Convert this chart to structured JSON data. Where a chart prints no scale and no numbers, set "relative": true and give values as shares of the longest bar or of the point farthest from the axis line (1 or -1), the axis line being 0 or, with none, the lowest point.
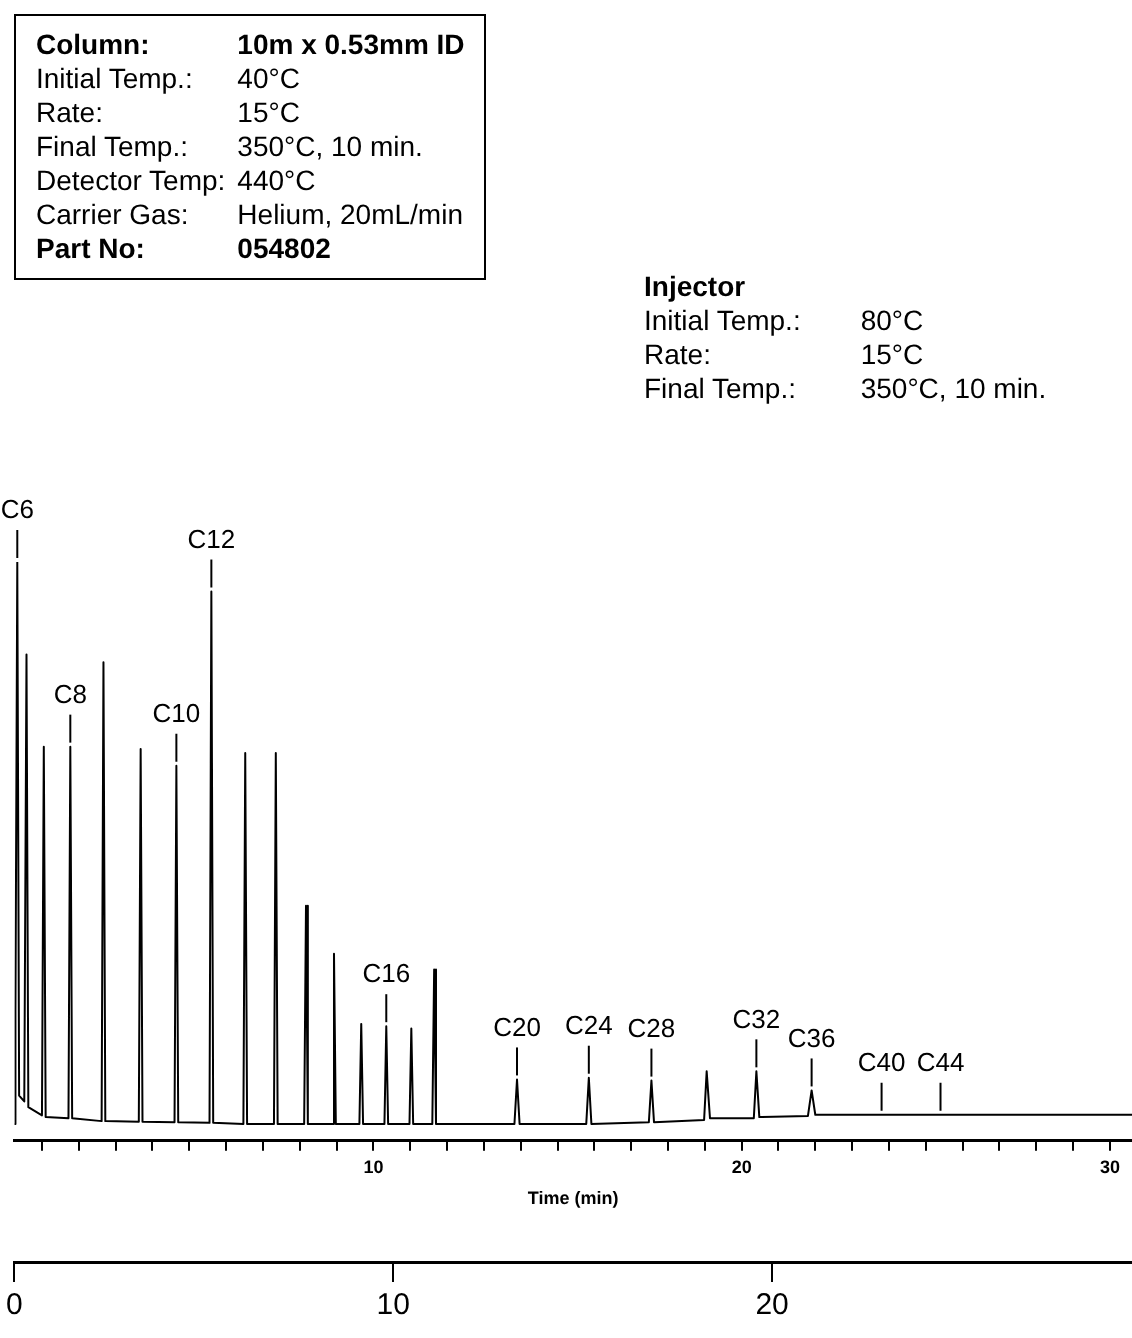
{
  "chart_data": {
    "type": "line",
    "relative": true,
    "xlabel": "Time (min)",
    "color": "#000000",
    "marker": "none",
    "line_style": "solid",
    "grid": false,
    "legend": false,
    "x": [
      0.25,
      0.28,
      0.33,
      0.38,
      0.52,
      0.58,
      0.63,
      1.0,
      1.05,
      1.1,
      1.72,
      1.77,
      1.82,
      2.62,
      2.67,
      2.72,
      3.63,
      3.68,
      3.73,
      4.6,
      4.65,
      4.7,
      5.55,
      5.6,
      5.65,
      6.47,
      6.52,
      6.57,
      7.3,
      7.35,
      7.4,
      8.12,
      8.17,
      8.22,
      8.88,
      8.93,
      8.98,
      9.62,
      9.67,
      9.72,
      10.3,
      10.35,
      10.4,
      10.98,
      11.03,
      11.08,
      11.6,
      11.65,
      11.7,
      13.83,
      13.9,
      13.97,
      15.78,
      15.85,
      15.92,
      17.48,
      17.55,
      17.62,
      18.98,
      19.05,
      19.14,
      20.33,
      20.4,
      20.48,
      21.8,
      21.9,
      22.0,
      30.6
    ],
    "values": [
      0.029,
      0.223,
      1.0,
      0.078,
      0.068,
      0.84,
      0.058,
      0.044,
      0.681,
      0.041,
      0.039,
      0.681,
      0.039,
      0.034,
      0.827,
      0.034,
      0.033,
      0.677,
      0.033,
      0.032,
      0.648,
      0.032,
      0.031,
      0.949,
      0.031,
      0.029,
      0.67,
      0.029,
      0.029,
      0.67,
      0.029,
      0.029,
      0.406,
      0.029,
      0.029,
      0.323,
      0.029,
      0.029,
      0.202,
      0.029,
      0.029,
      0.198,
      0.029,
      0.029,
      0.194,
      0.029,
      0.029,
      0.296,
      0.029,
      0.029,
      0.106,
      0.029,
      0.029,
      0.109,
      0.029,
      0.032,
      0.104,
      0.032,
      0.036,
      0.12,
      0.039,
      0.039,
      0.12,
      0.041,
      0.043,
      0.087,
      0.045,
      0.045
    ],
    "xlim": [
      0.25,
      30.6
    ],
    "xticks": [
      {
        "value": 1,
        "label": null
      },
      {
        "value": 2,
        "label": null
      },
      {
        "value": 3,
        "label": null
      },
      {
        "value": 4,
        "label": null
      },
      {
        "value": 5,
        "label": null
      },
      {
        "value": 6,
        "label": null
      },
      {
        "value": 7,
        "label": null
      },
      {
        "value": 8,
        "label": null
      },
      {
        "value": 9,
        "label": null
      },
      10,
      {
        "value": 11,
        "label": null
      },
      {
        "value": 12,
        "label": null
      },
      {
        "value": 13,
        "label": null
      },
      {
        "value": 14,
        "label": null
      },
      {
        "value": 15,
        "label": null
      },
      {
        "value": 16,
        "label": null
      },
      {
        "value": 17,
        "label": null
      },
      {
        "value": 18,
        "label": null
      },
      {
        "value": 19,
        "label": null
      },
      20,
      {
        "value": 21,
        "label": null
      },
      {
        "value": 22,
        "label": null
      },
      {
        "value": 23,
        "label": null
      },
      {
        "value": 24,
        "label": null
      },
      {
        "value": 25,
        "label": null
      },
      {
        "value": 26,
        "label": null
      },
      {
        "value": 27,
        "label": null
      },
      {
        "value": 28,
        "label": null
      },
      {
        "value": 29,
        "label": null
      },
      30
    ],
    "x2lim": [
      0,
      29.5
    ],
    "x2ticks": [
      0,
      10,
      20
    ],
    "annotations": [
      "Column:",
      "10m x 0.53mm ID",
      "Initial Temp.:",
      "40°C",
      "Rate:",
      "15°C",
      "Final Temp.:",
      "350°C, 10 min.",
      "Detector Temp:",
      "440°C",
      "Carrier Gas:",
      "Helium, 20mL/min",
      "Part No:",
      "054802",
      "Injector",
      "Initial Temp.:",
      "80°C",
      "Rate:",
      "15°C",
      "Final Temp.:",
      "350°C, 10 min.",
      {
        "text": "C6",
        "x": 0.33,
        "y": 1.0
      },
      {
        "text": "C8",
        "x": 1.77,
        "y": 0.681
      },
      {
        "text": "C10",
        "x": 4.65,
        "y": 0.648
      },
      {
        "text": "C12",
        "x": 5.6,
        "y": 0.949
      },
      {
        "text": "C16",
        "x": 10.35,
        "y": 0.198
      },
      {
        "text": "C20",
        "x": 13.9,
        "y": 0.106
      },
      {
        "text": "C24",
        "x": 15.85,
        "y": 0.109
      },
      {
        "text": "C28",
        "x": 17.55,
        "y": 0.104
      },
      {
        "text": "C32",
        "x": 20.4,
        "y": 0.12
      },
      {
        "text": "C36",
        "x": 21.9,
        "y": 0.087
      },
      {
        "text": "C40",
        "x": 23.8,
        "y": 0.045
      },
      {
        "text": "C44",
        "x": 25.4,
        "y": 0.045
      }
    ]
  }
}
